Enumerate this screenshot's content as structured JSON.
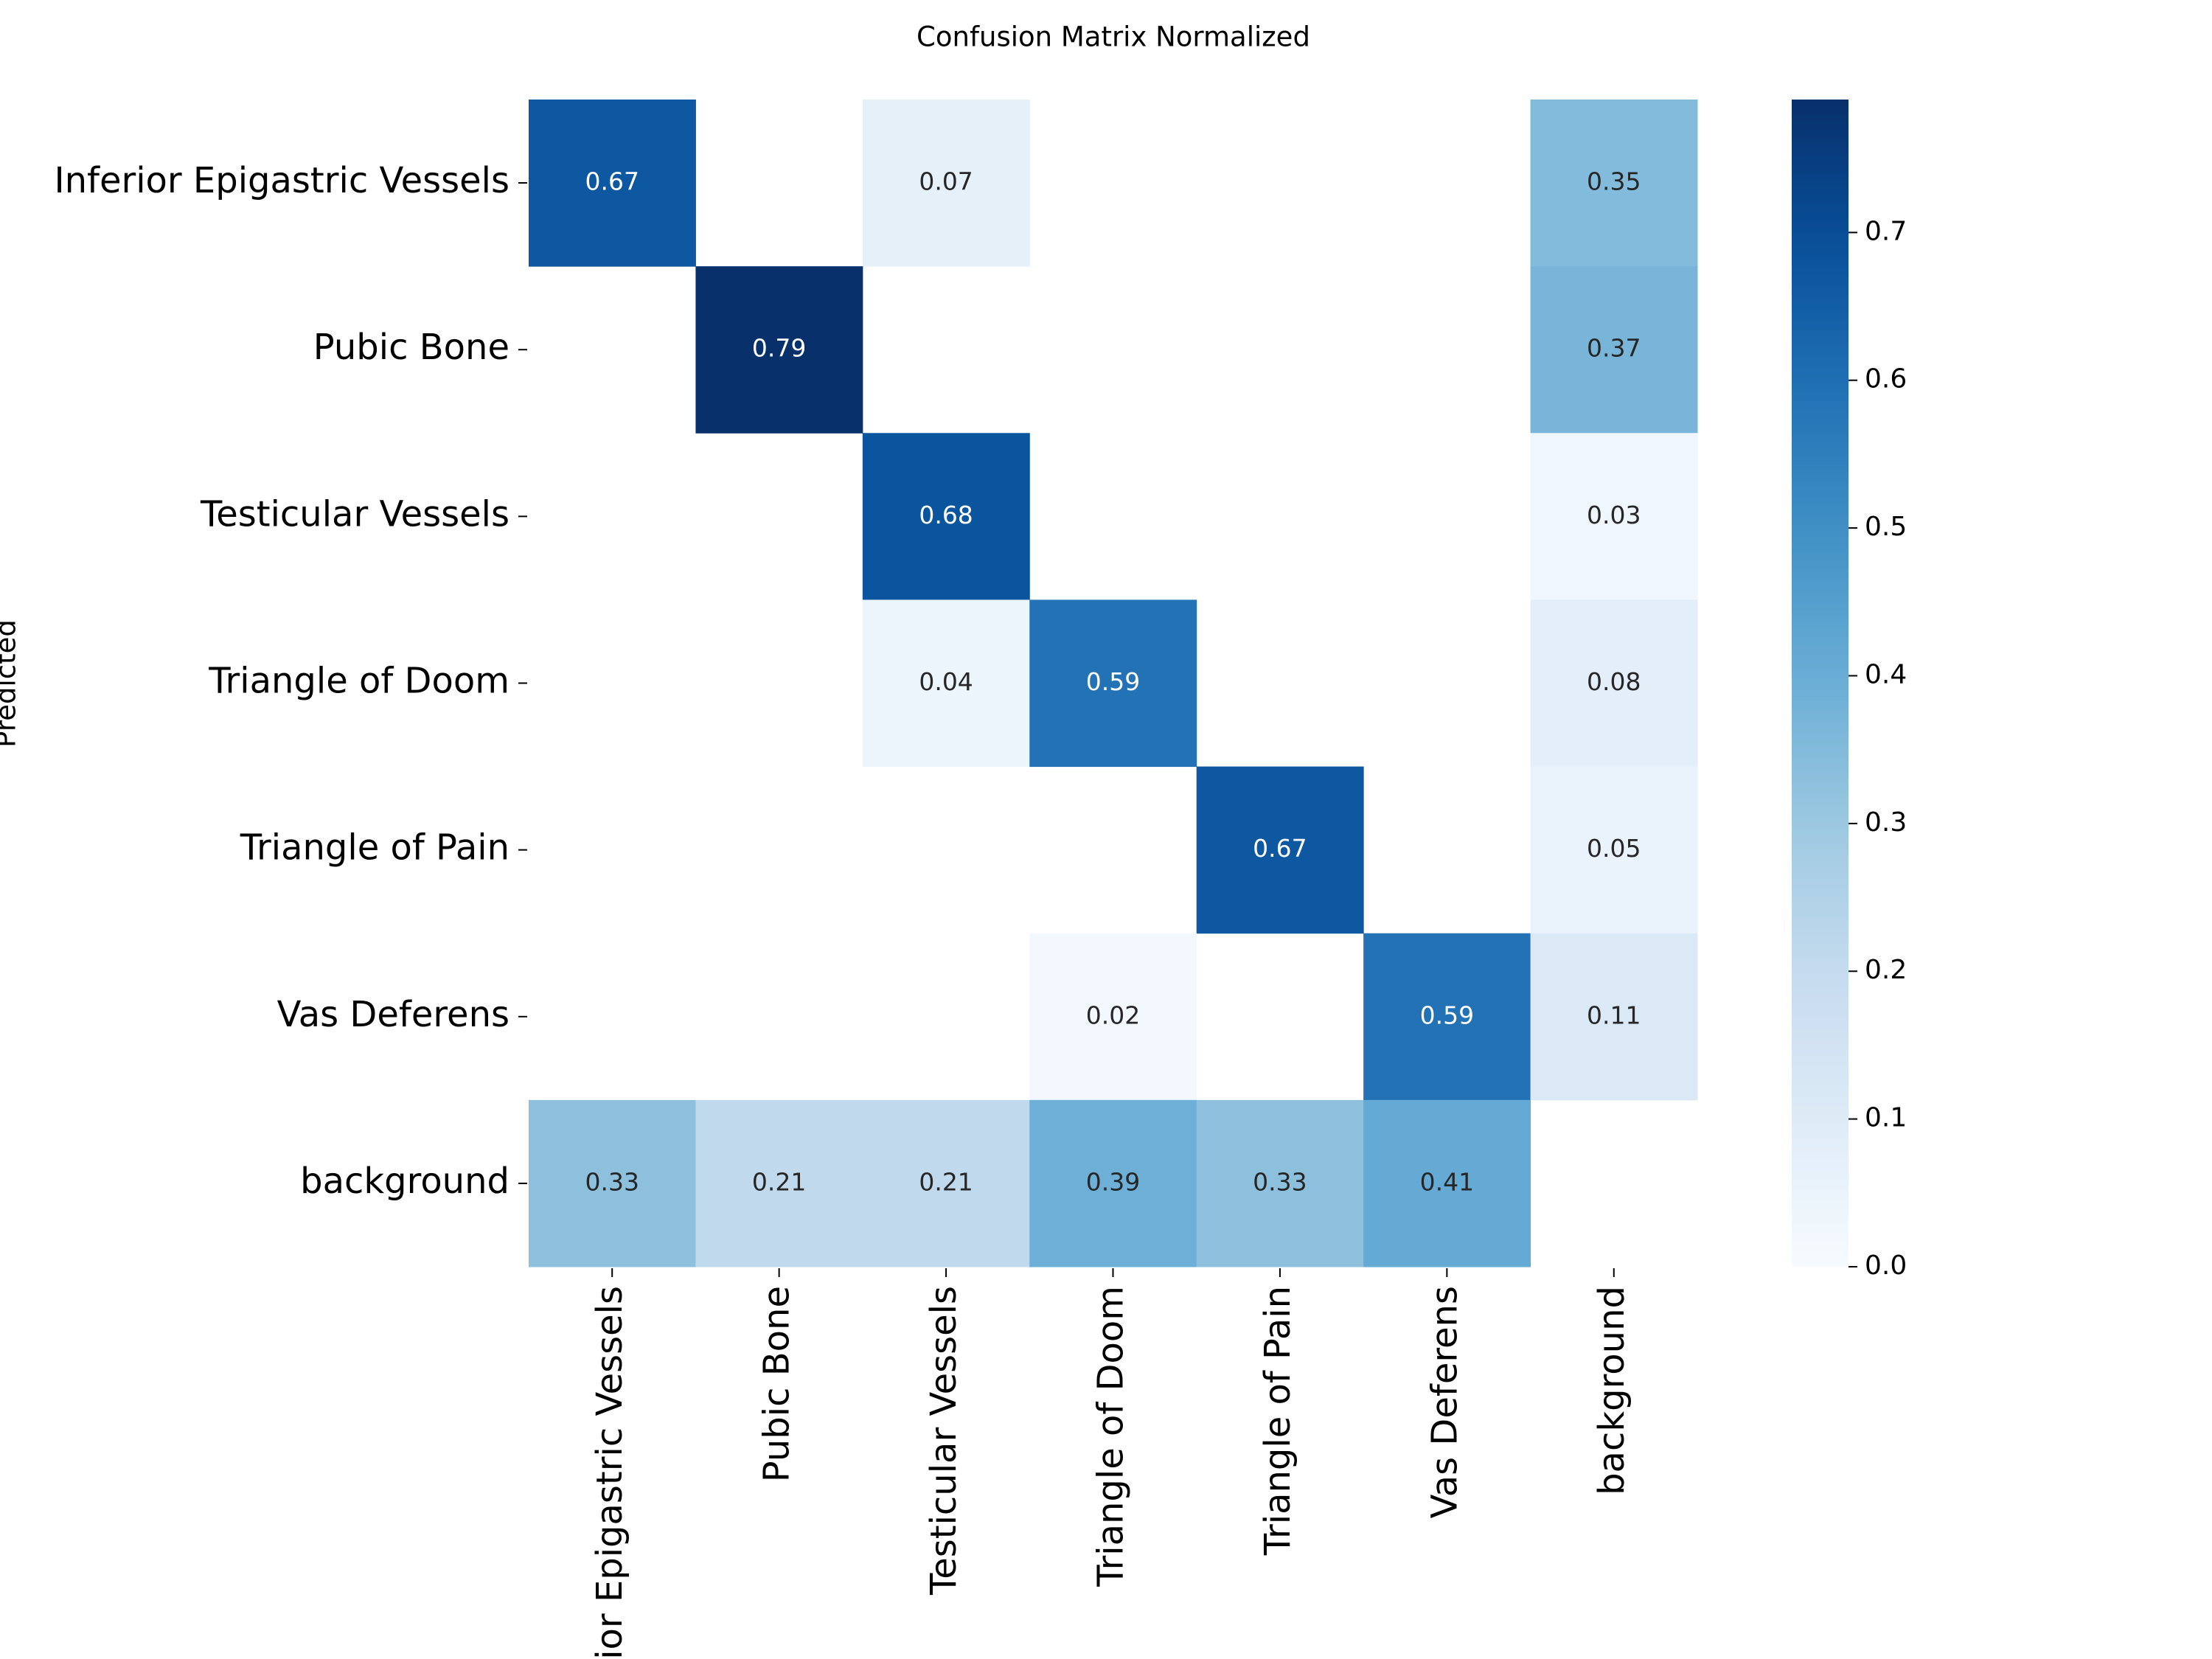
{
  "chart_data": {
    "type": "heatmap",
    "title": "Confusion Matrix Normalized",
    "y_label": "Predicted",
    "x_categories": [
      "Inferior Epigastric Vessels",
      "Pubic Bone",
      "Testicular Vessels",
      "Triangle of Doom",
      "Triangle of Pain",
      "Vas Deferens",
      "background"
    ],
    "y_categories": [
      "Inferior Epigastric Vessels",
      "Pubic Bone",
      "Testicular Vessels",
      "Triangle of Doom",
      "Triangle of Pain",
      "Vas Deferens",
      "background"
    ],
    "values": [
      [
        0.67,
        null,
        0.07,
        null,
        null,
        null,
        0.35
      ],
      [
        null,
        0.79,
        null,
        null,
        null,
        null,
        0.37
      ],
      [
        null,
        null,
        0.68,
        null,
        null,
        null,
        0.03
      ],
      [
        null,
        null,
        0.04,
        0.59,
        null,
        null,
        0.08
      ],
      [
        null,
        null,
        null,
        null,
        0.67,
        null,
        0.05
      ],
      [
        null,
        null,
        null,
        0.02,
        null,
        0.59,
        0.11
      ],
      [
        0.33,
        0.21,
        0.21,
        0.39,
        0.33,
        0.41,
        null
      ]
    ],
    "colormap": "Blues",
    "colorbar_lim": [
      0,
      0.79
    ],
    "colorbar_ticks": [
      {
        "value": 0,
        "label": "0.0"
      },
      0.1,
      0.2,
      0.3,
      0.4,
      0.5,
      0.6,
      0.7
    ]
  }
}
